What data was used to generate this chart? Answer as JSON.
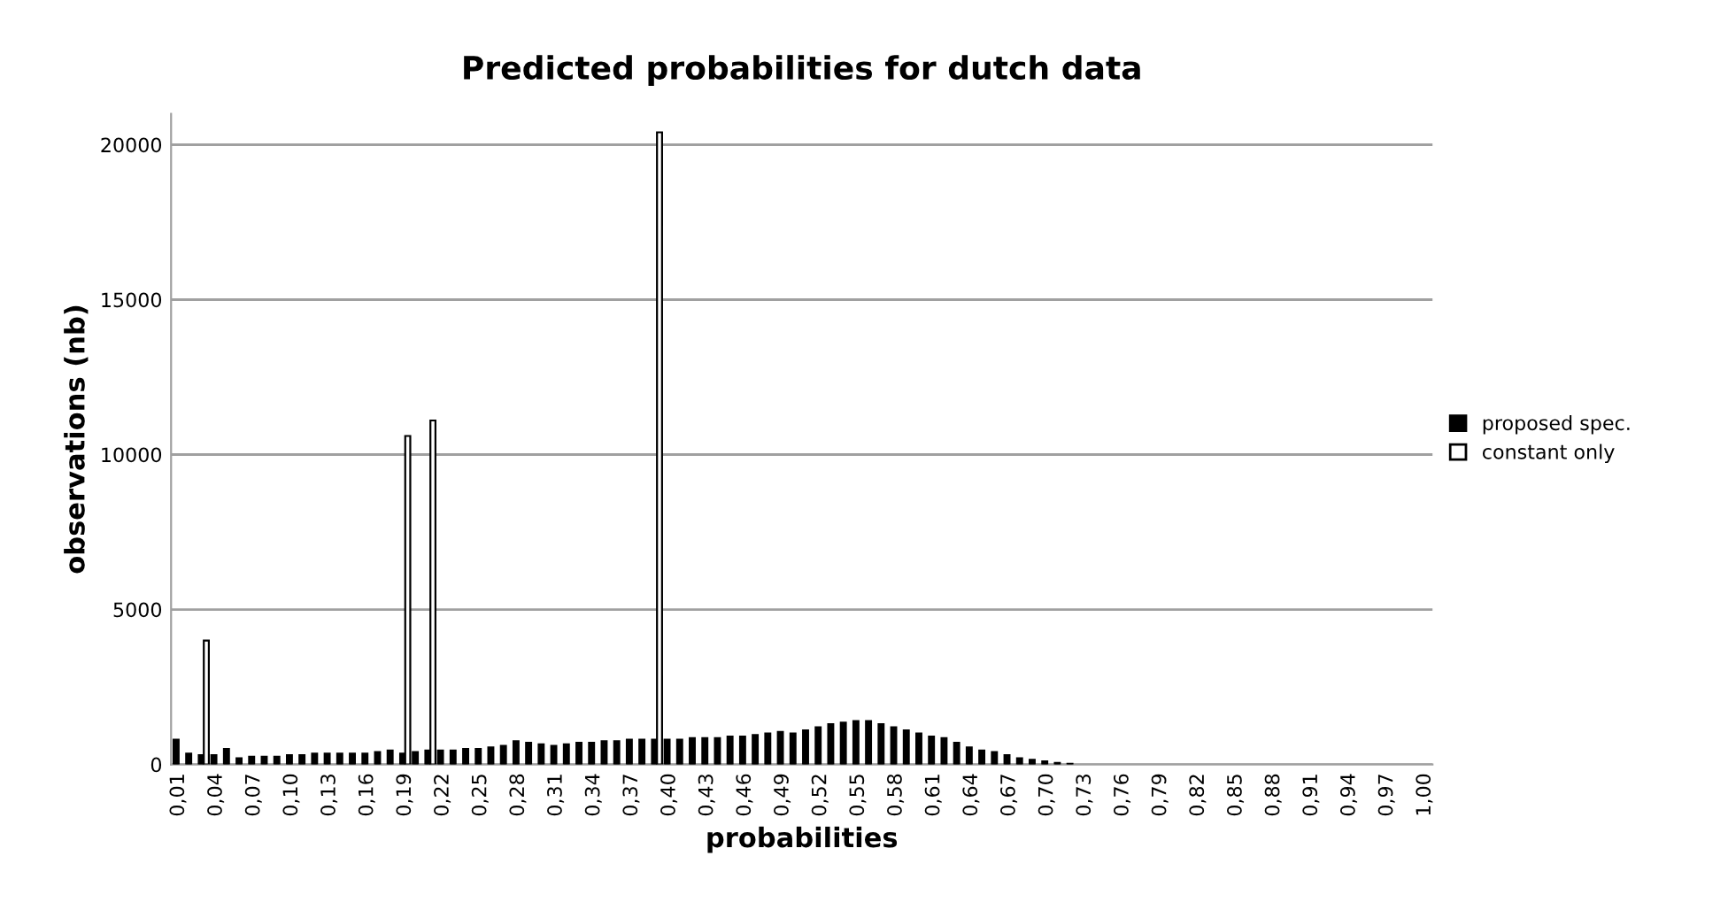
{
  "chart_data": {
    "type": "bar",
    "title": "Predicted probabilities for dutch data",
    "xlabel": "probabilities",
    "ylabel": "observations (nb)",
    "categories": [
      "0,01",
      null,
      null,
      "0,04",
      null,
      null,
      "0,07",
      null,
      null,
      "0,10",
      null,
      null,
      "0,13",
      null,
      null,
      "0,16",
      null,
      null,
      "0,19",
      null,
      null,
      "0,22",
      null,
      null,
      "0,25",
      null,
      null,
      "0,28",
      null,
      null,
      "0,31",
      null,
      null,
      "0,34",
      null,
      null,
      "0,37",
      null,
      null,
      "0,40",
      null,
      null,
      "0,43",
      null,
      null,
      "0,46",
      null,
      null,
      "0,49",
      null,
      null,
      "0,52",
      null,
      null,
      "0,55",
      null,
      null,
      "0,58",
      null,
      null,
      "0,61",
      null,
      null,
      "0,64",
      null,
      null,
      "0,67",
      null,
      null,
      "0,70",
      null,
      null,
      "0,73",
      null,
      null,
      "0,76",
      null,
      null,
      "0,79",
      null,
      null,
      "0,82",
      null,
      null,
      "0,85",
      null,
      null,
      "0,88",
      null,
      null,
      "0,91",
      null,
      null,
      "0,94",
      null,
      null,
      "0,97",
      null,
      null,
      "1,00"
    ],
    "series": [
      {
        "name": "proposed spec.",
        "color": "#000000",
        "values": [
          800,
          350,
          300,
          300,
          500,
          200,
          250,
          250,
          250,
          300,
          300,
          350,
          350,
          350,
          350,
          350,
          400,
          450,
          350,
          400,
          450,
          450,
          450,
          500,
          500,
          550,
          600,
          750,
          700,
          650,
          600,
          650,
          700,
          700,
          750,
          750,
          800,
          800,
          800,
          800,
          800,
          850,
          850,
          850,
          900,
          900,
          950,
          1000,
          1050,
          1000,
          1100,
          1200,
          1300,
          1350,
          1400,
          1400,
          1300,
          1200,
          1100,
          1000,
          900,
          850,
          700,
          550,
          450,
          400,
          300,
          200,
          150,
          100,
          50,
          20,
          0,
          0,
          0,
          0,
          0,
          0,
          0,
          0,
          0,
          0,
          0,
          0,
          0,
          0,
          0,
          0,
          0,
          0,
          0,
          0,
          0,
          0,
          0,
          0,
          0,
          0,
          0,
          0
        ]
      },
      {
        "name": "constant only",
        "color": "#ffffff",
        "values": [
          0,
          0,
          4000,
          0,
          0,
          0,
          0,
          0,
          0,
          0,
          0,
          0,
          0,
          0,
          0,
          0,
          0,
          0,
          10600,
          0,
          11100,
          0,
          0,
          0,
          0,
          0,
          0,
          0,
          0,
          0,
          0,
          0,
          0,
          0,
          0,
          0,
          0,
          0,
          20400,
          0,
          0,
          0,
          0,
          0,
          0,
          0,
          0,
          0,
          0,
          0,
          0,
          0,
          0,
          0,
          0,
          0,
          0,
          0,
          0,
          0,
          0,
          0,
          0,
          0,
          0,
          0,
          0,
          0,
          0,
          0,
          0,
          0,
          0,
          0,
          0,
          0,
          0,
          0,
          0,
          0,
          0,
          0,
          0,
          0,
          0,
          0,
          0,
          0,
          0,
          0,
          0,
          0,
          0,
          0,
          0,
          0,
          0,
          0,
          0,
          0
        ]
      }
    ],
    "ylim": [
      0,
      21000
    ],
    "yticks": [
      0,
      5000,
      10000,
      15000,
      20000
    ],
    "grid": "y",
    "legend": "right"
  }
}
